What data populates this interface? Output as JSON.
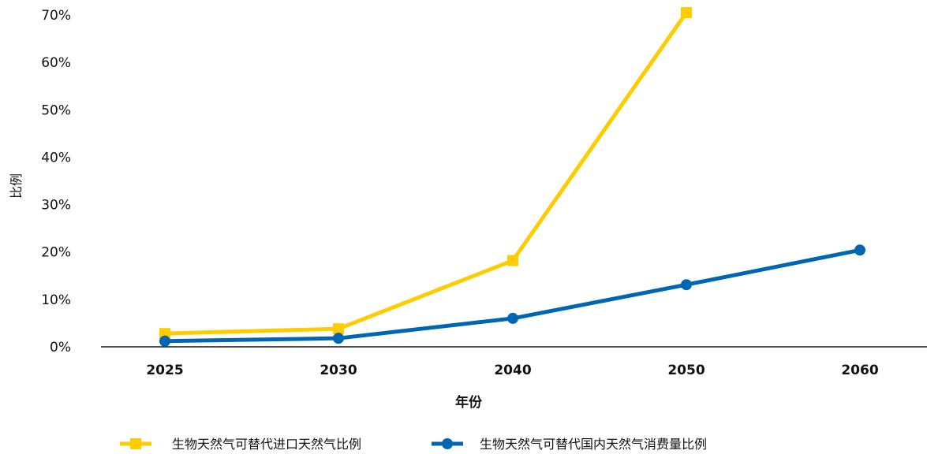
{
  "chart_data": {
    "type": "line",
    "xlabel": "年份",
    "ylabel": "比例",
    "categories": [
      "2025",
      "2030",
      "2040",
      "2050",
      "2060"
    ],
    "ylim": [
      0,
      70
    ],
    "yticks": [
      "0%",
      "10%",
      "20%",
      "30%",
      "40%",
      "50%",
      "60%",
      "70%"
    ],
    "ytick_values": [
      0,
      10,
      20,
      30,
      40,
      50,
      60,
      70
    ],
    "grid": false,
    "legend_position": "bottom",
    "series": [
      {
        "name": "生物天然气可替代进口天然气比例",
        "values": [
          2.8,
          3.8,
          18.2,
          70.5,
          null
        ],
        "color": "#FFCC00",
        "marker": "square"
      },
      {
        "name": "生物天然气可替代国内天然气消费量比例",
        "values": [
          1.2,
          1.8,
          6.0,
          13.1,
          20.4
        ],
        "color": "#0066B3",
        "marker": "circle"
      }
    ]
  }
}
